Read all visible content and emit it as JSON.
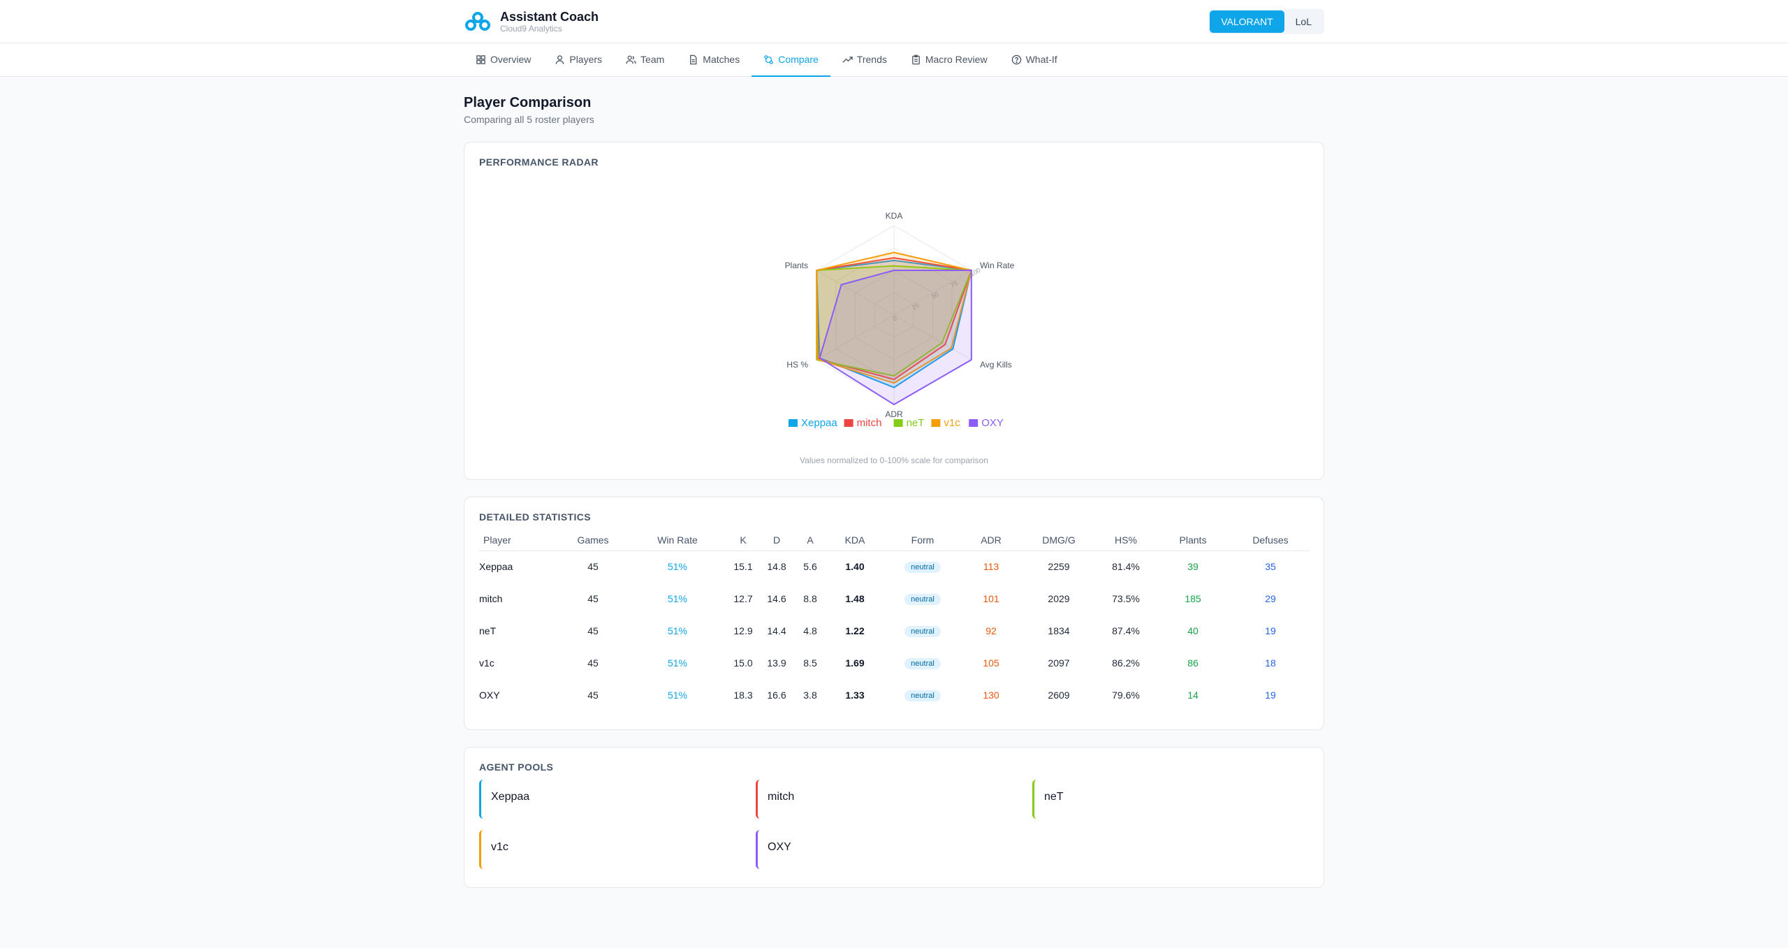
{
  "app": {
    "title": "Assistant Coach",
    "subtitle": "Cloud9 Analytics",
    "brand_color": "#0ea5e9"
  },
  "game_switch": [
    {
      "label": "VALORANT",
      "active": true
    },
    {
      "label": "LoL",
      "active": false
    }
  ],
  "nav": [
    {
      "label": "Overview",
      "icon": "grid-icon"
    },
    {
      "label": "Players",
      "icon": "user-icon"
    },
    {
      "label": "Team",
      "icon": "users-icon"
    },
    {
      "label": "Matches",
      "icon": "document-icon"
    },
    {
      "label": "Compare",
      "icon": "compare-icon",
      "active": true
    },
    {
      "label": "Trends",
      "icon": "trending-up-icon"
    },
    {
      "label": "Macro Review",
      "icon": "clipboard-icon"
    },
    {
      "label": "What-If",
      "icon": "help-circle-icon"
    }
  ],
  "page": {
    "title": "Player Comparison",
    "subtitle": "Comparing all 5 roster players"
  },
  "radar_card": {
    "title": "PERFORMANCE RADAR",
    "note": "Values normalized to 0-100% scale for comparison"
  },
  "chart_data": {
    "type": "radar",
    "axes": [
      "KDA",
      "Win Rate",
      "Avg Kills",
      "ADR",
      "HS %",
      "Plants"
    ],
    "scale_max": 100,
    "tick_labels": [
      "0",
      "25",
      "50",
      "75",
      "100"
    ],
    "legend": "bottom",
    "series": [
      {
        "name": "Xeppaa",
        "color": "#0ea5e9",
        "values": [
          61,
          100,
          76,
          81,
          96,
          100
        ]
      },
      {
        "name": "mitch",
        "color": "#ef4444",
        "values": [
          64,
          100,
          66,
          72,
          98,
          100
        ]
      },
      {
        "name": "neT",
        "color": "#84cc16",
        "values": [
          55,
          100,
          62,
          68,
          100,
          100
        ]
      },
      {
        "name": "v1c",
        "color": "#f59e0b",
        "values": [
          70,
          100,
          74,
          76,
          99,
          100
        ]
      },
      {
        "name": "OXY",
        "color": "#8b5cf6",
        "values": [
          50,
          100,
          100,
          100,
          96,
          68
        ]
      }
    ]
  },
  "stats": {
    "title": "DETAILED STATISTICS",
    "headers": [
      "Player",
      "Games",
      "Win Rate",
      "K",
      "D",
      "A",
      "KDA",
      "Form",
      "ADR",
      "DMG/G",
      "HS%",
      "Plants",
      "Defuses"
    ],
    "rows": [
      {
        "player": "Xeppaa",
        "games": "45",
        "win_rate": "51%",
        "k": "15.1",
        "d": "14.8",
        "a": "5.6",
        "kda": "1.40",
        "form": "neutral",
        "adr": "113",
        "dmg": "2259",
        "hs": "81.4%",
        "plants": "39",
        "defuses": "35"
      },
      {
        "player": "mitch",
        "games": "45",
        "win_rate": "51%",
        "k": "12.7",
        "d": "14.6",
        "a": "8.8",
        "kda": "1.48",
        "form": "neutral",
        "adr": "101",
        "dmg": "2029",
        "hs": "73.5%",
        "plants": "185",
        "defuses": "29"
      },
      {
        "player": "neT",
        "games": "45",
        "win_rate": "51%",
        "k": "12.9",
        "d": "14.4",
        "a": "4.8",
        "kda": "1.22",
        "form": "neutral",
        "adr": "92",
        "dmg": "1834",
        "hs": "87.4%",
        "plants": "40",
        "defuses": "19"
      },
      {
        "player": "v1c",
        "games": "45",
        "win_rate": "51%",
        "k": "15.0",
        "d": "13.9",
        "a": "8.5",
        "kda": "1.69",
        "form": "neutral",
        "adr": "105",
        "dmg": "2097",
        "hs": "86.2%",
        "plants": "86",
        "defuses": "18"
      },
      {
        "player": "OXY",
        "games": "45",
        "win_rate": "51%",
        "k": "18.3",
        "d": "16.6",
        "a": "3.8",
        "kda": "1.33",
        "form": "neutral",
        "adr": "130",
        "dmg": "2609",
        "hs": "79.6%",
        "plants": "14",
        "defuses": "19"
      }
    ]
  },
  "agents": {
    "title": "AGENT POOLS",
    "players": [
      {
        "name": "Xeppaa",
        "color": "#0ea5e9"
      },
      {
        "name": "mitch",
        "color": "#ef4444"
      },
      {
        "name": "neT",
        "color": "#84cc16"
      },
      {
        "name": "v1c",
        "color": "#f59e0b"
      },
      {
        "name": "OXY",
        "color": "#8b5cf6"
      }
    ]
  }
}
